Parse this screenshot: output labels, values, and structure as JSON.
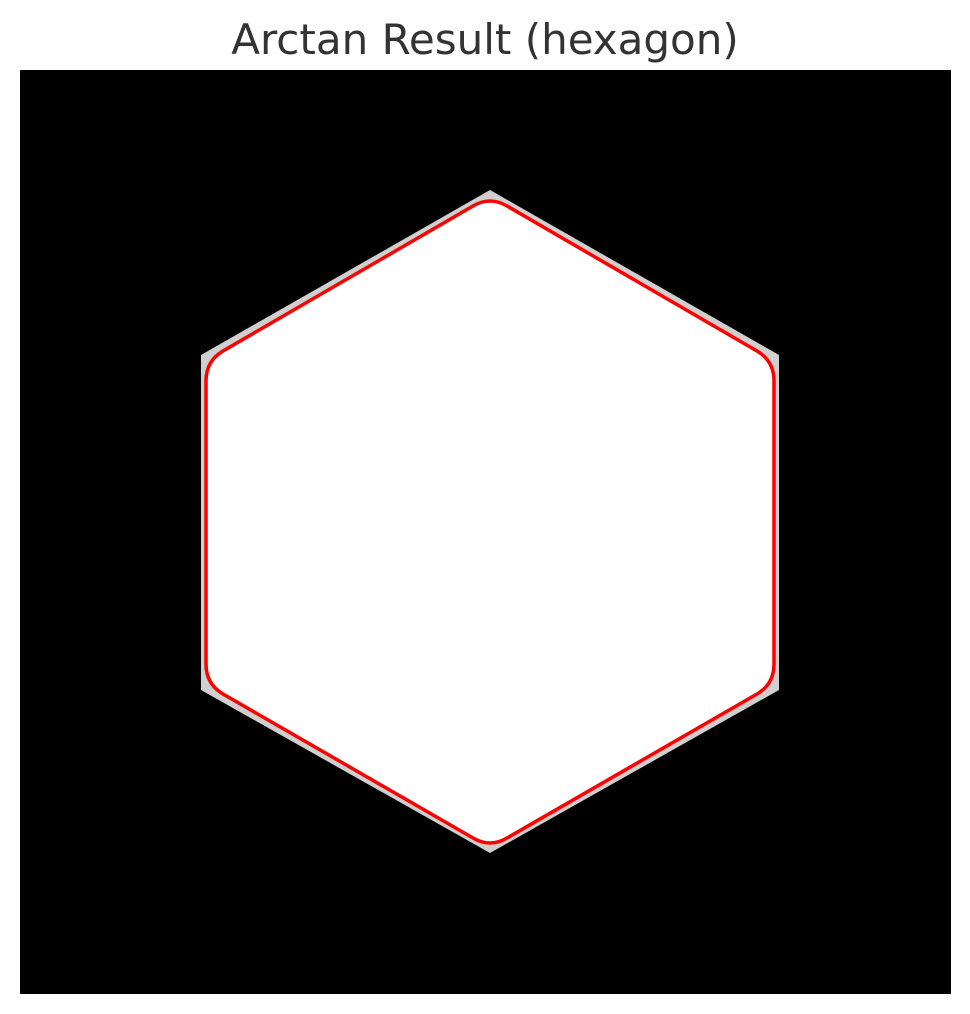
{
  "figure": {
    "title": "Arctan Result (hexagon)"
  },
  "image": {
    "background_color": "#000000",
    "shape": "hexagon",
    "shape_fill_color": "#ffffff",
    "contour_color": "#ff0000"
  }
}
